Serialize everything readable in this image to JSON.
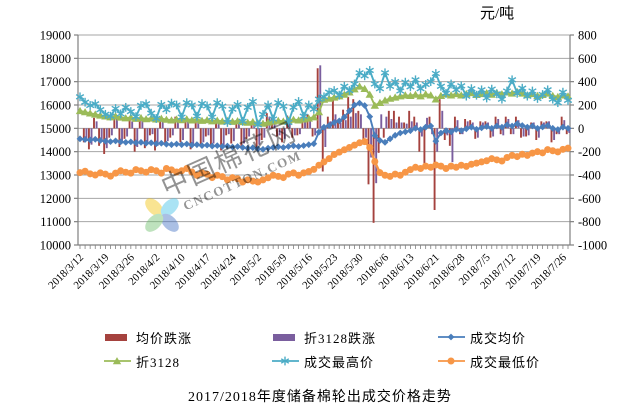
{
  "unit_label": "元/吨",
  "title": "2017/2018年度储备棉轮出成交价格走势",
  "watermark": {
    "cn": "中国棉花网",
    "en": "CNCOTTON.COM"
  },
  "chart_data": {
    "type": "combo-bar-line",
    "grid": "horizontal",
    "legend_position": "bottom",
    "grid_color": "#A6A6A6",
    "axis_color": "#808080",
    "left_axis": {
      "min": 10000,
      "max": 19000,
      "step": 1000
    },
    "right_axis": {
      "min": -1000,
      "max": 800,
      "step": 200
    },
    "tick_every": 5,
    "x_tick_labels": [
      "2018/3/12",
      "2018/3/19",
      "2018/3/26",
      "2018/4/2",
      "2018/4/10",
      "2018/4/17",
      "2018/4/24",
      "2018/5/2",
      "2018/5/9",
      "2018/5/16",
      "2018/5/23",
      "2018/5/30",
      "2018/6/6",
      "2018/6/13",
      "2018/6/21",
      "2018/6/28",
      "2018/7/5",
      "2018/7/12",
      "2018/7/19",
      "2018/7/26"
    ],
    "series": [
      {
        "name": "均价跌涨",
        "type": "bar",
        "axis": "right",
        "color": "#A5423E",
        "values": [
          0,
          -120,
          -180,
          90,
          -150,
          -220,
          -80,
          110,
          -160,
          -90,
          70,
          -200,
          80,
          -170,
          -60,
          -190,
          90,
          -140,
          -80,
          100,
          -120,
          90,
          -180,
          60,
          -150,
          -70,
          -160,
          80,
          -190,
          -60,
          -130,
          70,
          -160,
          -90,
          60,
          -180,
          -100,
          130,
          90,
          -70,
          -120,
          110,
          -80,
          -60,
          100,
          120,
          -70,
          515,
          -370,
          100,
          240,
          70,
          160,
          270,
          250,
          150,
          -100,
          -480,
          -810,
          -210,
          -80,
          150,
          150,
          100,
          50,
          150,
          100,
          -200,
          -300,
          100,
          -700,
          250,
          -100,
          -150,
          100,
          -50,
          80,
          70,
          -90,
          60,
          60,
          -80,
          100,
          -50,
          100,
          -50,
          100,
          -80,
          -70,
          50,
          -100,
          60,
          60,
          -120,
          -50,
          100,
          -50
        ]
      },
      {
        "name": "折3128跌涨",
        "type": "bar",
        "axis": "right",
        "color": "#7A5E9E",
        "values": [
          0,
          -90,
          -140,
          60,
          -110,
          -170,
          -60,
          90,
          -130,
          -70,
          60,
          -160,
          70,
          -140,
          -50,
          -150,
          70,
          -110,
          -60,
          80,
          -100,
          70,
          -150,
          50,
          -120,
          -60,
          -130,
          60,
          -150,
          -50,
          -110,
          60,
          -130,
          -70,
          50,
          -140,
          -80,
          100,
          70,
          -60,
          -90,
          90,
          -60,
          -50,
          80,
          90,
          -60,
          540,
          -160,
          60,
          120,
          50,
          70,
          100,
          130,
          120,
          -80,
          -250,
          -470,
          120,
          100,
          80,
          50,
          50,
          40,
          60,
          50,
          -70,
          90,
          -50,
          -200,
          150,
          -60,
          -290,
          70,
          -50,
          60,
          50,
          -80,
          50,
          50,
          -70,
          80,
          -60,
          80,
          -50,
          70,
          -70,
          -60,
          50,
          -80,
          50,
          60,
          -100,
          -50,
          70,
          -40
        ]
      },
      {
        "name": "成交均价",
        "type": "line",
        "marker": "diamond",
        "axis": "left",
        "color": "#4A7EBB",
        "values": [
          14550,
          14520,
          14500,
          14530,
          14480,
          14450,
          14430,
          14460,
          14420,
          14400,
          14420,
          14380,
          14400,
          14360,
          14380,
          14340,
          14360,
          14320,
          14300,
          14330,
          14300,
          14330,
          14280,
          14300,
          14260,
          14280,
          14240,
          14260,
          14220,
          14240,
          14200,
          14220,
          14180,
          14150,
          14170,
          14120,
          14100,
          14150,
          14180,
          14210,
          14180,
          14220,
          14250,
          14220,
          14260,
          14300,
          14340,
          14840,
          15050,
          15120,
          15250,
          15320,
          15480,
          15750,
          16000,
          16080,
          15980,
          15500,
          14690,
          14480,
          14400,
          14550,
          14700,
          14800,
          14850,
          14900,
          15000,
          14950,
          15050,
          15100,
          14450,
          14800,
          14900,
          14850,
          14950,
          14900,
          14980,
          15050,
          14960,
          15020,
          15080,
          15000,
          15100,
          15050,
          15150,
          15100,
          15200,
          15120,
          15050,
          15100,
          15000,
          15060,
          15120,
          15000,
          14950,
          15050,
          15000
        ]
      },
      {
        "name": "折3128",
        "type": "line",
        "marker": "triangle",
        "axis": "left",
        "color": "#9BBB59",
        "values": [
          15750,
          15700,
          15650,
          15600,
          15560,
          15520,
          15480,
          15520,
          15470,
          15440,
          15470,
          15420,
          15450,
          15400,
          15430,
          15390,
          15420,
          15380,
          15350,
          15390,
          15360,
          15400,
          15350,
          15380,
          15330,
          15360,
          15310,
          15340,
          15300,
          15330,
          15290,
          15320,
          15280,
          15250,
          15280,
          15230,
          15210,
          15260,
          15300,
          15330,
          15300,
          15350,
          15380,
          15350,
          15390,
          15430,
          15480,
          15700,
          16240,
          16280,
          16330,
          16380,
          16450,
          16550,
          16680,
          16800,
          16700,
          16450,
          15980,
          16100,
          16200,
          16280,
          16330,
          16380,
          16420,
          16400,
          16450,
          16380,
          16470,
          16420,
          16250,
          16400,
          16470,
          16420,
          16480,
          16420,
          16480,
          16520,
          16440,
          16480,
          16520,
          16450,
          16530,
          16470,
          16550,
          16500,
          16570,
          16500,
          16430,
          16480,
          16400,
          16440,
          16500,
          16400,
          16350,
          16420,
          16380
        ]
      },
      {
        "name": "成交最高价",
        "type": "line",
        "marker": "asterisk",
        "axis": "left",
        "color": "#4BACC6",
        "values": [
          16350,
          16120,
          15980,
          16050,
          15800,
          15600,
          15520,
          15850,
          15620,
          15900,
          15720,
          15500,
          15980,
          16050,
          15650,
          15420,
          16020,
          15800,
          16080,
          16000,
          15480,
          16100,
          16000,
          15520,
          16060,
          15960,
          15480,
          16100,
          15950,
          15250,
          15820,
          16020,
          15300,
          15900,
          16150,
          15150,
          15600,
          16000,
          15400,
          16100,
          15950,
          15250,
          15900,
          16150,
          15520,
          16000,
          15820,
          16250,
          16350,
          16550,
          16620,
          16420,
          16800,
          16620,
          16900,
          17380,
          17250,
          17480,
          16900,
          16700,
          17380,
          16800,
          17000,
          16600,
          16980,
          16780,
          17080,
          16700,
          16880,
          17000,
          17350,
          16800,
          16500,
          16900,
          16650,
          16820,
          16380,
          16700,
          16420,
          16650,
          16300,
          16680,
          16480,
          16250,
          16600,
          17080,
          16500,
          16720,
          16380,
          16600,
          16280,
          16450,
          16650,
          16250,
          16100,
          16550,
          16200
        ]
      },
      {
        "name": "成交最低价",
        "type": "line",
        "marker": "circle",
        "axis": "left",
        "color": "#F79646",
        "values": [
          13100,
          13160,
          13050,
          13000,
          13090,
          13040,
          12950,
          13080,
          13180,
          13120,
          13080,
          13230,
          13180,
          13120,
          13230,
          13180,
          13080,
          13280,
          13220,
          13130,
          13180,
          13280,
          13130,
          12990,
          13090,
          13030,
          12890,
          12990,
          12930,
          12790,
          12890,
          12840,
          12700,
          12790,
          12740,
          12700,
          12790,
          12880,
          12990,
          12940,
          12890,
          13040,
          13090,
          12990,
          13090,
          13150,
          13240,
          13420,
          13560,
          13700,
          13880,
          13980,
          14080,
          14180,
          14280,
          14380,
          14430,
          14180,
          13580,
          13100,
          12990,
          12940,
          13040,
          12990,
          13120,
          13230,
          13330,
          13280,
          13380,
          13330,
          13430,
          13380,
          13280,
          13380,
          13330,
          13420,
          13370,
          13460,
          13510,
          13560,
          13610,
          13700,
          13650,
          13600,
          13750,
          13840,
          13790,
          13890,
          13840,
          13940,
          14000,
          13950,
          14090,
          14040,
          13990,
          14100,
          14150
        ]
      }
    ]
  }
}
